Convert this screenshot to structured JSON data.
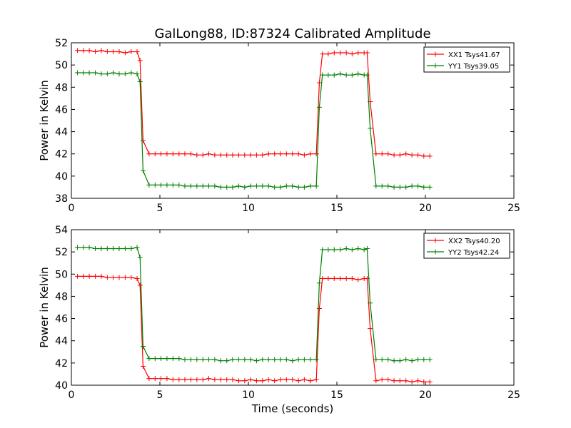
{
  "figure": {
    "title": "GalLong88, ID:87324 Calibrated Amplitude",
    "xlabel": "Time (seconds)"
  },
  "chart_data": [
    {
      "type": "line",
      "ylabel": "Power in Kelvin",
      "xlim": [
        0,
        25
      ],
      "ylim": [
        38,
        52
      ],
      "xticks": [
        0,
        5,
        10,
        15,
        20,
        25
      ],
      "yticks": [
        38,
        40,
        42,
        44,
        46,
        48,
        50,
        52
      ],
      "grid": false,
      "legend_position": "top-right",
      "x": [
        0.34,
        0.68,
        1.01,
        1.35,
        1.69,
        2.03,
        2.36,
        2.7,
        3.04,
        3.38,
        3.71,
        3.88,
        4.05,
        4.39,
        4.73,
        5.06,
        5.4,
        5.74,
        6.08,
        6.41,
        6.75,
        7.09,
        7.43,
        7.76,
        8.1,
        8.44,
        8.78,
        9.11,
        9.45,
        9.79,
        10.13,
        10.46,
        10.8,
        11.14,
        11.48,
        11.81,
        12.15,
        12.49,
        12.83,
        13.16,
        13.5,
        13.84,
        14.01,
        14.18,
        14.51,
        14.85,
        15.19,
        15.53,
        15.86,
        16.2,
        16.54,
        16.71,
        16.88,
        17.21,
        17.55,
        17.89,
        18.23,
        18.56,
        18.9,
        19.24,
        19.58,
        19.91,
        20.25
      ],
      "series": [
        {
          "name": "XX1 Tsys41.67",
          "color": "#ff0000",
          "values": [
            51.3,
            51.3,
            51.3,
            51.2,
            51.3,
            51.2,
            51.2,
            51.2,
            51.1,
            51.2,
            51.2,
            50.4,
            43.2,
            42.0,
            42.0,
            42.0,
            42.0,
            42.0,
            42.0,
            42.0,
            42.0,
            41.9,
            41.9,
            42.0,
            41.9,
            41.9,
            41.9,
            41.9,
            41.9,
            41.9,
            41.9,
            41.9,
            41.9,
            42.0,
            42.0,
            42.0,
            42.0,
            42.0,
            42.0,
            41.9,
            42.0,
            42.0,
            48.4,
            51.0,
            51.0,
            51.1,
            51.1,
            51.1,
            51.0,
            51.1,
            51.1,
            51.1,
            46.7,
            42.0,
            42.0,
            42.0,
            41.9,
            41.9,
            42.0,
            41.9,
            41.9,
            41.8,
            41.8
          ]
        },
        {
          "name": "YY1 Tsys39.05",
          "color": "#008000",
          "values": [
            49.3,
            49.3,
            49.3,
            49.3,
            49.2,
            49.2,
            49.3,
            49.2,
            49.2,
            49.3,
            49.2,
            48.5,
            40.5,
            39.2,
            39.2,
            39.2,
            39.2,
            39.2,
            39.2,
            39.1,
            39.1,
            39.1,
            39.1,
            39.1,
            39.1,
            39.0,
            39.0,
            39.0,
            39.1,
            39.0,
            39.1,
            39.1,
            39.1,
            39.1,
            39.0,
            39.0,
            39.1,
            39.1,
            39.0,
            39.0,
            39.1,
            39.1,
            46.2,
            49.1,
            49.1,
            49.1,
            49.2,
            49.1,
            49.1,
            49.2,
            49.1,
            49.1,
            44.3,
            39.1,
            39.1,
            39.1,
            39.0,
            39.0,
            39.0,
            39.1,
            39.1,
            39.0,
            39.0
          ]
        }
      ]
    },
    {
      "type": "line",
      "ylabel": "Power in Kelvin",
      "xlabel": "Time (seconds)",
      "xlim": [
        0,
        25
      ],
      "ylim": [
        40,
        54
      ],
      "xticks": [
        0,
        5,
        10,
        15,
        20,
        25
      ],
      "yticks": [
        40,
        42,
        44,
        46,
        48,
        50,
        52,
        54
      ],
      "grid": false,
      "legend_position": "top-right",
      "x": [
        0.34,
        0.68,
        1.01,
        1.35,
        1.69,
        2.03,
        2.36,
        2.7,
        3.04,
        3.38,
        3.71,
        3.88,
        4.05,
        4.39,
        4.73,
        5.06,
        5.4,
        5.74,
        6.08,
        6.41,
        6.75,
        7.09,
        7.43,
        7.76,
        8.1,
        8.44,
        8.78,
        9.11,
        9.45,
        9.79,
        10.13,
        10.46,
        10.8,
        11.14,
        11.48,
        11.81,
        12.15,
        12.49,
        12.83,
        13.16,
        13.5,
        13.84,
        14.01,
        14.18,
        14.51,
        14.85,
        15.19,
        15.53,
        15.86,
        16.2,
        16.54,
        16.71,
        16.88,
        17.21,
        17.55,
        17.89,
        18.23,
        18.56,
        18.9,
        19.24,
        19.58,
        19.91,
        20.25
      ],
      "series": [
        {
          "name": "XX2 Tsys40.20",
          "color": "#ff0000",
          "values": [
            49.8,
            49.8,
            49.8,
            49.8,
            49.8,
            49.7,
            49.7,
            49.7,
            49.7,
            49.7,
            49.6,
            49.0,
            41.7,
            40.6,
            40.6,
            40.6,
            40.6,
            40.5,
            40.5,
            40.5,
            40.5,
            40.5,
            40.5,
            40.6,
            40.5,
            40.5,
            40.5,
            40.5,
            40.4,
            40.4,
            40.5,
            40.4,
            40.4,
            40.5,
            40.4,
            40.5,
            40.5,
            40.5,
            40.4,
            40.5,
            40.4,
            40.5,
            46.9,
            49.6,
            49.6,
            49.6,
            49.6,
            49.6,
            49.6,
            49.5,
            49.6,
            49.6,
            45.1,
            40.4,
            40.5,
            40.5,
            40.4,
            40.4,
            40.4,
            40.3,
            40.4,
            40.3,
            40.3
          ]
        },
        {
          "name": "YY2 Tsys42.24",
          "color": "#008000",
          "values": [
            52.4,
            52.4,
            52.4,
            52.3,
            52.3,
            52.3,
            52.3,
            52.3,
            52.3,
            52.3,
            52.4,
            51.5,
            43.5,
            42.4,
            42.4,
            42.4,
            42.4,
            42.4,
            42.4,
            42.3,
            42.3,
            42.3,
            42.3,
            42.3,
            42.3,
            42.2,
            42.2,
            42.3,
            42.3,
            42.3,
            42.3,
            42.2,
            42.3,
            42.3,
            42.3,
            42.3,
            42.3,
            42.2,
            42.3,
            42.3,
            42.3,
            42.3,
            49.2,
            52.2,
            52.2,
            52.2,
            52.2,
            52.3,
            52.2,
            52.3,
            52.2,
            52.3,
            47.4,
            42.3,
            42.3,
            42.3,
            42.2,
            42.2,
            42.3,
            42.2,
            42.3,
            42.3,
            42.3
          ]
        }
      ]
    }
  ]
}
